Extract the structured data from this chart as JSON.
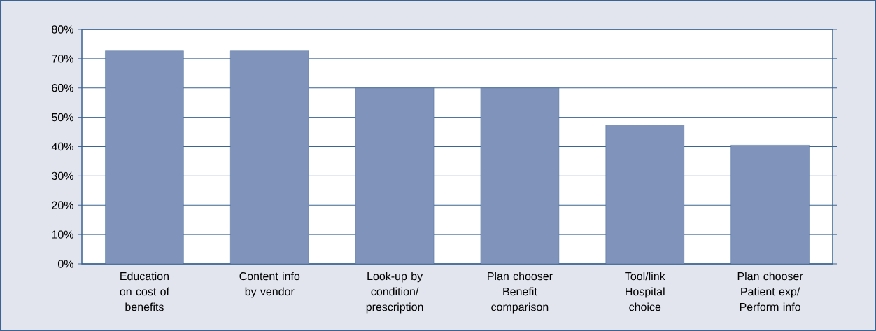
{
  "chart_data": {
    "type": "bar",
    "categories": [
      "Education on cost of benefits",
      "Content info by vendor",
      "Look-up by condition/ prescription",
      "Plan chooser Benefit comparison",
      "Tool/link Hospital choice",
      "Plan chooser Patient exp/ Perform info"
    ],
    "values": [
      72.7,
      72.7,
      60,
      60,
      47.4,
      40.5
    ],
    "color": "#7f93bb",
    "ylim": [
      0,
      80
    ],
    "yticks": [
      {
        "value": 0,
        "label": "0%"
      },
      {
        "value": 10,
        "label": "10%"
      },
      {
        "value": 20,
        "label": "20%"
      },
      {
        "value": 30,
        "label": "30%"
      },
      {
        "value": 40,
        "label": "40%"
      },
      {
        "value": 50,
        "label": "50%"
      },
      {
        "value": 60,
        "label": "60%"
      },
      {
        "value": 70,
        "label": "70%"
      },
      {
        "value": 80,
        "label": "80%"
      }
    ],
    "grid": "y"
  }
}
